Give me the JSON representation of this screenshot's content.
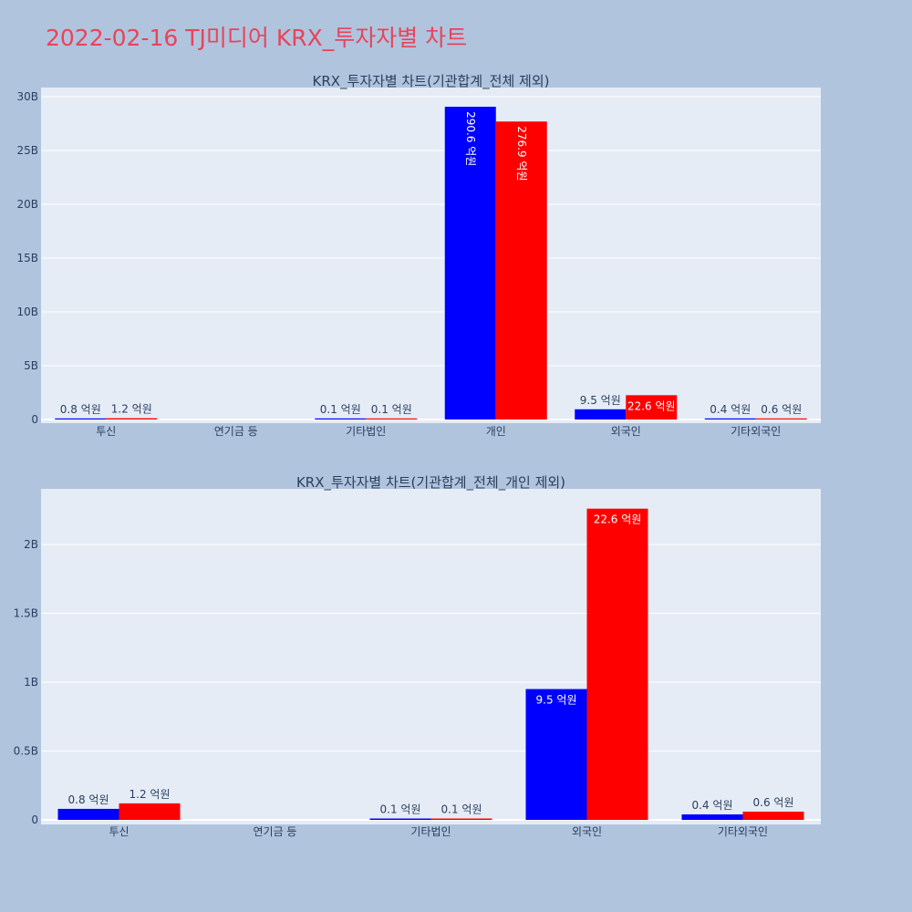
{
  "page": {
    "title": "2022-02-16 TJ미디어 KRX_투자자별 차트"
  },
  "colors": {
    "buy": "#0000ff",
    "sell": "#ff0000",
    "plot_bg": "#e5ecf6",
    "page_bg": "#b0c4de",
    "title": "#e8445a"
  },
  "chart_data": [
    {
      "type": "bar",
      "title": "KRX_투자자별 차트(기관합계_전체 제외)",
      "categories": [
        "투신",
        "연기금 등",
        "기타법인",
        "개인",
        "외국인",
        "기타외국인"
      ],
      "series": [
        {
          "values": [
            80000000,
            0,
            10000000,
            29060000000,
            950000000,
            40000000
          ],
          "labels": [
            "0.8 억원",
            "",
            "0.1 억원",
            "290.6 억원",
            "9.5 억원",
            "0.4 억원"
          ],
          "color": "#0000ff"
        },
        {
          "values": [
            120000000,
            0,
            10000000,
            27690000000,
            2260000000,
            60000000
          ],
          "labels": [
            "1.2 억원",
            "",
            "0.1 억원",
            "276.9 억원",
            "22.6 억원",
            "0.6 억원"
          ],
          "color": "#ff0000"
        }
      ],
      "ylim": [
        0,
        30600000000
      ],
      "yticks": [
        0,
        5000000000,
        10000000000,
        15000000000,
        20000000000,
        25000000000,
        30000000000
      ],
      "ytick_labels": [
        "0",
        "5B",
        "10B",
        "15B",
        "20B",
        "25B",
        "30B"
      ],
      "grid": true
    },
    {
      "type": "bar",
      "title": "KRX_투자자별 차트(기관합계_전체_개인 제외)",
      "categories": [
        "투신",
        "연기금 등",
        "기타법인",
        "외국인",
        "기타외국인"
      ],
      "series": [
        {
          "values": [
            80000000,
            0,
            10000000,
            950000000,
            40000000
          ],
          "labels": [
            "0.8 억원",
            "",
            "0.1 억원",
            "9.5 억원",
            "0.4 억원"
          ],
          "color": "#0000ff"
        },
        {
          "values": [
            120000000,
            0,
            10000000,
            2260000000,
            60000000
          ],
          "labels": [
            "1.2 억원",
            "",
            "0.1 억원",
            "22.6 억원",
            "0.6 억원"
          ],
          "color": "#ff0000"
        }
      ],
      "ylim": [
        0,
        2380000000
      ],
      "yticks": [
        0,
        500000000,
        1000000000,
        1500000000,
        2000000000
      ],
      "ytick_labels": [
        "0",
        "0.5B",
        "1B",
        "1.5B",
        "2B"
      ],
      "grid": true
    }
  ]
}
